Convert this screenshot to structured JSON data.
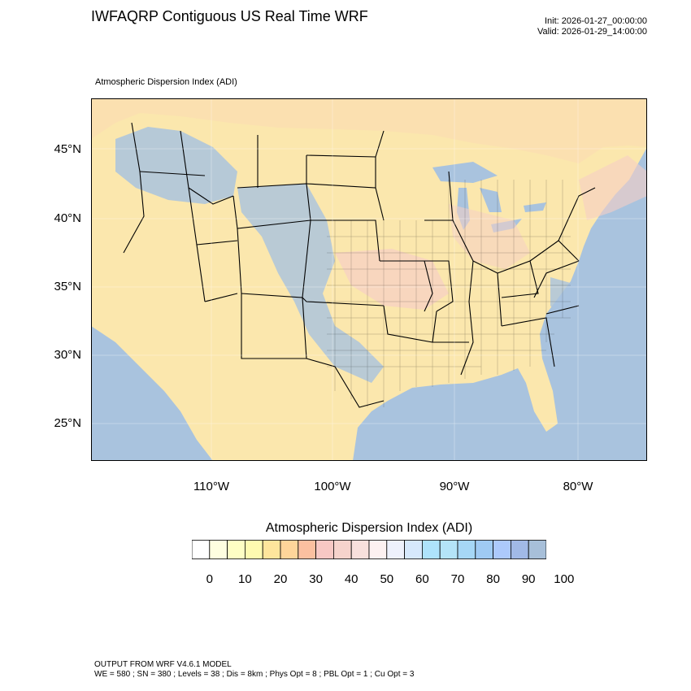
{
  "header": {
    "title": "IWFAQRP Contiguous US Real Time WRF",
    "init": "Init: 2026-01-27_00:00:00",
    "valid": "Valid: 2026-01-29_14:00:00",
    "subtitle": "Atmospheric Dispersion Index   (ADI)"
  },
  "map": {
    "lat_labels": [
      "45°N",
      "40°N",
      "35°N",
      "30°N",
      "25°N"
    ],
    "lon_labels": [
      "110°W",
      "100°W",
      "90°W",
      "80°W"
    ],
    "land_color": "#fbe7ad",
    "ocean_color": "#a9c3de"
  },
  "colorbar": {
    "title": "Atmospheric Dispersion Index  (ADI)",
    "labels": [
      "0",
      "10",
      "20",
      "30",
      "40",
      "50",
      "60",
      "70",
      "80",
      "90",
      "100"
    ],
    "colors": [
      "#ffffff",
      "#fefee0",
      "#fefec4",
      "#fefab0",
      "#fee59c",
      "#fed59a",
      "#fbc0a0",
      "#f7c8c4",
      "#f6d3cc",
      "#f8e0dc",
      "#fdf1f1",
      "#eef1fc",
      "#d6e8fc",
      "#aee3fb",
      "#b4e4f8",
      "#a6d7f6",
      "#9fcaf3",
      "#acc9fb",
      "#a1b9e6",
      "#a7bfd9"
    ]
  },
  "footer": {
    "line1": "OUTPUT FROM WRF V4.6.1 MODEL",
    "line2": "WE = 580 ; SN = 380 ; Levels = 38 ; Dis = 8km ; Phys Opt = 8 ; PBL Opt = 1 ; Cu Opt = 3"
  }
}
